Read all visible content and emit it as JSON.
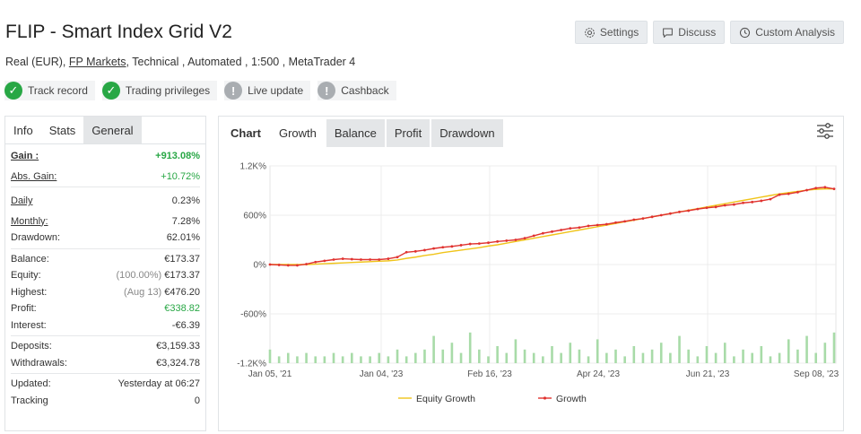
{
  "header": {
    "title": "FLIP - Smart Index Grid V2",
    "buttons": [
      {
        "label": "Settings",
        "icon": "gear-icon"
      },
      {
        "label": "Discuss",
        "icon": "chat-icon"
      },
      {
        "label": "Custom Analysis",
        "icon": "clock-icon"
      }
    ],
    "subline": {
      "account": "Real (EUR),",
      "broker": "FP Markets",
      "rest": ", Technical , Automated , 1:500 , MetaTrader 4"
    },
    "badges": [
      {
        "label": "Track record",
        "status": "ok"
      },
      {
        "label": "Trading privileges",
        "status": "ok"
      },
      {
        "label": "Live update",
        "status": "na"
      },
      {
        "label": "Cashback",
        "status": "na"
      }
    ]
  },
  "left_panel": {
    "tabs": [
      "Info",
      "Stats",
      "General"
    ],
    "gain": {
      "label": "Gain :",
      "value": "+913.08%"
    },
    "abs_gain": {
      "label": "Abs. Gain:",
      "value": "+10.72%"
    },
    "daily": {
      "label": "Daily",
      "value": "0.23%"
    },
    "monthly": {
      "label": "Monthly:",
      "value": "7.28%"
    },
    "drawdown": {
      "label": "Drawdown:",
      "value": "62.01%"
    },
    "balance": {
      "label": "Balance:",
      "value": "€173.37"
    },
    "equity": {
      "label": "Equity:",
      "note": "(100.00%)",
      "value": "€173.37"
    },
    "highest": {
      "label": "Highest:",
      "note": "(Aug 13)",
      "value": "€476.20"
    },
    "profit": {
      "label": "Profit:",
      "value": "€338.82"
    },
    "interest": {
      "label": "Interest:",
      "value": "-€6.39"
    },
    "deposits": {
      "label": "Deposits:",
      "value": "€3,159.33"
    },
    "withdrawals": {
      "label": "Withdrawals:",
      "value": "€3,324.78"
    },
    "updated": {
      "label": "Updated:",
      "value": "Yesterday at 06:27"
    },
    "tracking": {
      "label": "Tracking",
      "value": "0"
    }
  },
  "chart_panel": {
    "tabs": [
      "Chart",
      "Growth",
      "Balance",
      "Profit",
      "Drawdown"
    ],
    "active_tab": "Growth",
    "filter_icon": "sliders-icon"
  },
  "colors": {
    "growth": "#e0322f",
    "equity": "#f0c419",
    "volume": "#a8dba8",
    "green_text": "#28a745"
  },
  "chart_data": {
    "type": "line",
    "x_ticks": [
      "Jan 05, '21",
      "Jan 04, '23",
      "Feb 16, '23",
      "Apr 24, '23",
      "Jun 21, '23",
      "Sep 08, '23"
    ],
    "y_ticks": [
      "1.2K%",
      "600%",
      "0%",
      "-600%",
      "-1.2K%"
    ],
    "ylim": [
      -1200,
      1200
    ],
    "legend": [
      "Equity Growth",
      "Growth"
    ],
    "series": [
      {
        "name": "Growth",
        "values": [
          0,
          -5,
          -10,
          -10,
          5,
          30,
          45,
          60,
          70,
          65,
          60,
          60,
          60,
          70,
          90,
          150,
          160,
          175,
          195,
          210,
          220,
          235,
          250,
          255,
          265,
          280,
          290,
          300,
          320,
          350,
          380,
          400,
          420,
          440,
          450,
          470,
          480,
          490,
          510,
          525,
          545,
          560,
          580,
          600,
          620,
          640,
          655,
          675,
          690,
          700,
          720,
          730,
          750,
          760,
          775,
          795,
          850,
          860,
          880,
          905,
          930,
          940,
          920
        ]
      },
      {
        "name": "Equity Growth",
        "values": [
          0,
          0,
          0,
          0,
          0,
          5,
          10,
          15,
          20,
          25,
          30,
          35,
          40,
          45,
          55,
          75,
          90,
          110,
          125,
          145,
          160,
          175,
          190,
          205,
          225,
          240,
          260,
          280,
          300,
          320,
          340,
          360,
          380,
          400,
          420,
          440,
          460,
          480,
          500,
          520,
          540,
          560,
          580,
          600,
          620,
          640,
          660,
          680,
          700,
          720,
          740,
          760,
          780,
          800,
          820,
          840,
          860,
          875,
          890,
          905,
          915,
          920,
          920
        ]
      },
      {
        "name": "volume",
        "values": [
          4,
          2,
          3,
          2,
          3,
          2,
          2,
          3,
          2,
          3,
          2,
          2,
          3,
          2,
          4,
          2,
          3,
          4,
          8,
          4,
          6,
          3,
          9,
          4,
          2,
          5,
          3,
          7,
          4,
          3,
          2,
          5,
          3,
          6,
          4,
          2,
          7,
          3,
          4,
          2,
          5,
          3,
          4,
          6,
          3,
          8,
          4,
          2,
          5,
          3,
          6,
          2,
          4,
          3,
          5,
          2,
          3,
          7,
          4,
          8,
          3,
          6,
          9
        ]
      }
    ]
  }
}
